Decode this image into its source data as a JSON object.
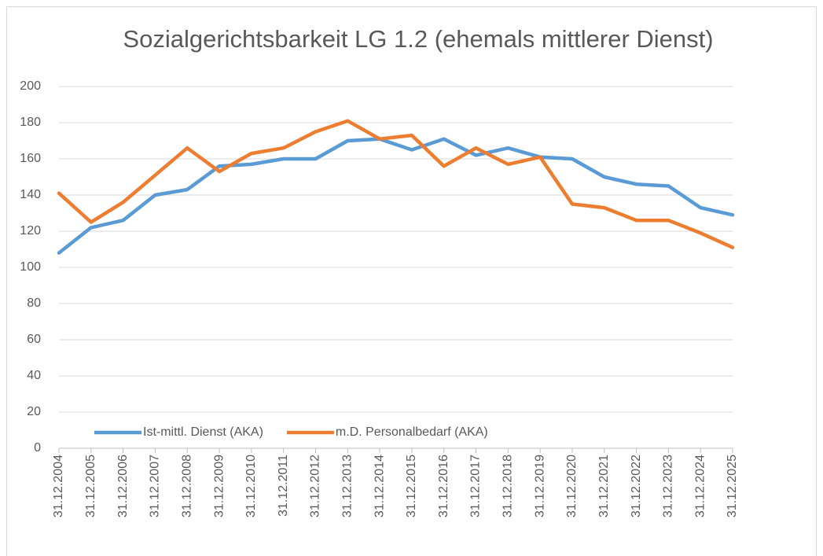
{
  "chart_data": {
    "type": "line",
    "title": "Sozialgerichtsbarkeit LG 1.2 (ehemals mittlerer Dienst)",
    "categories": [
      "31.12.2004",
      "31.12.2005",
      "31.12.2006",
      "31.12.2007",
      "31.12.2008",
      "31.12.2009",
      "31.12.2010",
      "31.12.2011",
      "31.12.2012",
      "31.12.2013",
      "31.12.2014",
      "31.12.2015",
      "31.12.2016",
      "31.12.2017",
      "31.12.2018",
      "31.12.2019",
      "31.12.2020",
      "31.12.2021",
      "31.12.2022",
      "31.12.2023",
      "31.12.2024",
      "31.12.2025"
    ],
    "series": [
      {
        "name": "Ist-mittl. Dienst (AKA)",
        "color": "#5b9bd5",
        "values": [
          108,
          122,
          126,
          140,
          143,
          156,
          157,
          160,
          160,
          170,
          171,
          165,
          171,
          162,
          166,
          161,
          160,
          150,
          146,
          145,
          133,
          129
        ]
      },
      {
        "name": "m.D. Personalbedarf (AKA)",
        "color": "#ed7d31",
        "values": [
          141,
          125,
          136,
          151,
          166,
          153,
          163,
          166,
          175,
          181,
          171,
          173,
          156,
          166,
          157,
          161,
          135,
          133,
          126,
          126,
          119,
          111
        ]
      }
    ],
    "ylim": [
      0,
      200
    ],
    "yticks": [
      0,
      20,
      40,
      60,
      80,
      100,
      120,
      140,
      160,
      180,
      200
    ],
    "grid": true,
    "legend": "inside-bottom-left"
  }
}
